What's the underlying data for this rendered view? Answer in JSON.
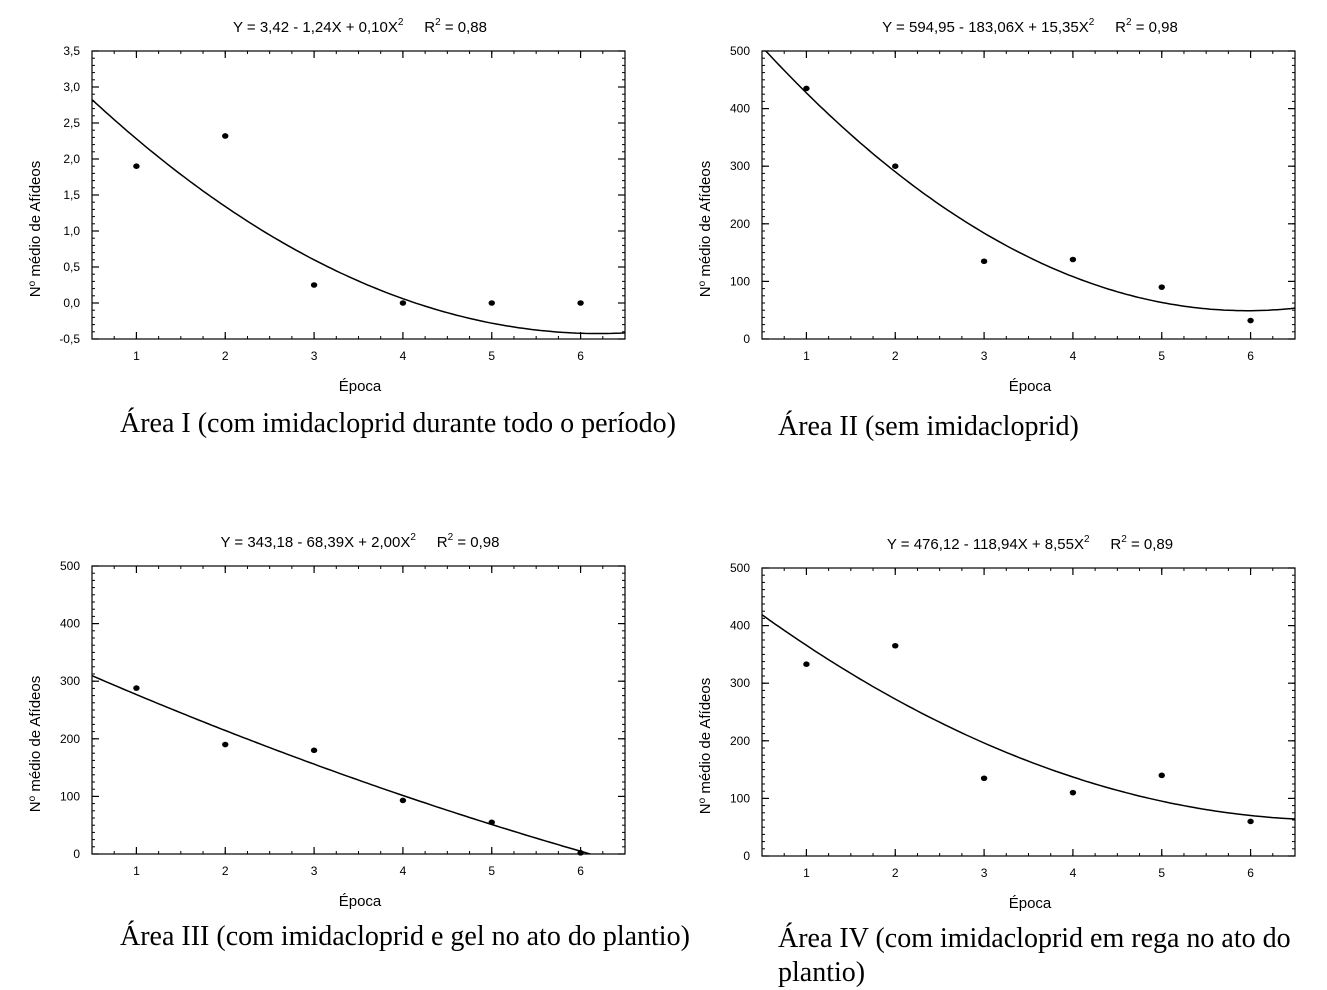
{
  "chart_data": [
    {
      "type": "scatter",
      "equation": "Y = 3,42 - 1,24X + 0,10X",
      "equation_exp": "2",
      "r2_label": "R",
      "r2_exp": "2",
      "r2_value": "= 0,88",
      "xlabel": "Época",
      "ylabel": "N",
      "ylabel_sup": "o",
      "ylabel_rest": " médio de Afídeos",
      "caption": "Área I (com imidacloprid durante todo o período)",
      "xlim": [
        0.5,
        6.5
      ],
      "ylim": [
        -0.5,
        3.5
      ],
      "xticks": [
        "1",
        "2",
        "3",
        "4",
        "5",
        "6"
      ],
      "yticks": [
        -0.5,
        0,
        0.5,
        1,
        1.5,
        2,
        2.5,
        3,
        3.5
      ],
      "ytick_labels": [
        "-0,5",
        "0,0",
        "0,5",
        "1,0",
        "1,5",
        "2,0",
        "2,5",
        "3,0",
        "3,5"
      ],
      "x": [
        1,
        2,
        3,
        4,
        5,
        6
      ],
      "y": [
        1.9,
        2.32,
        0.25,
        0.0,
        0.0,
        0.0
      ],
      "fit": [
        3.42,
        -1.24,
        0.1
      ]
    },
    {
      "type": "scatter",
      "equation": "Y = 594,95 - 183,06X + 15,35X",
      "equation_exp": "2",
      "r2_label": "R",
      "r2_exp": "2",
      "r2_value": "= 0,98",
      "xlabel": "Época",
      "ylabel": "N",
      "ylabel_sup": "o",
      "ylabel_rest": " médio de Afídeos",
      "caption": "Área II (sem imidacloprid)",
      "xlim": [
        0.5,
        6.5
      ],
      "ylim": [
        0,
        500
      ],
      "xticks": [
        "1",
        "2",
        "3",
        "4",
        "5",
        "6"
      ],
      "yticks": [
        0,
        100,
        200,
        300,
        400,
        500
      ],
      "ytick_labels": [
        "0",
        "100",
        "200",
        "300",
        "400",
        "500"
      ],
      "x": [
        1,
        2,
        3,
        4,
        5,
        6
      ],
      "y": [
        435,
        300,
        135,
        138,
        90,
        32
      ],
      "fit": [
        594.95,
        -183.06,
        15.35
      ]
    },
    {
      "type": "scatter",
      "equation": "Y = 343,18 - 68,39X + 2,00X",
      "equation_exp": "2",
      "r2_label": "R",
      "r2_exp": "2",
      "r2_value": "= 0,98",
      "xlabel": "Época",
      "ylabel": "N",
      "ylabel_sup": "o",
      "ylabel_rest": " médio de Afídeos",
      "caption": "Área III (com imidacloprid e gel no ato do plantio)",
      "xlim": [
        0.5,
        6.5
      ],
      "ylim": [
        0,
        500
      ],
      "xticks": [
        "1",
        "2",
        "3",
        "4",
        "5",
        "6"
      ],
      "yticks": [
        0,
        100,
        200,
        300,
        400,
        500
      ],
      "ytick_labels": [
        "0",
        "100",
        "200",
        "300",
        "400",
        "500"
      ],
      "x": [
        1,
        2,
        3,
        4,
        5,
        6
      ],
      "y": [
        288,
        190,
        180,
        93,
        55,
        2
      ],
      "fit": [
        343.18,
        -68.39,
        2.0
      ]
    },
    {
      "type": "scatter",
      "equation": "Y = 476,12 - 118,94X + 8,55X",
      "equation_exp": "2",
      "r2_label": "R",
      "r2_exp": "2",
      "r2_value": "= 0,89",
      "xlabel": "Época",
      "ylabel": "N",
      "ylabel_sup": "o",
      "ylabel_rest": " médio de Afídeos",
      "caption": "Área IV (com imidacloprid em rega no ato do plantio)",
      "xlim": [
        0.5,
        6.5
      ],
      "ylim": [
        0,
        500
      ],
      "xticks": [
        "1",
        "2",
        "3",
        "4",
        "5",
        "6"
      ],
      "yticks": [
        0,
        100,
        200,
        300,
        400,
        500
      ],
      "ytick_labels": [
        "0",
        "100",
        "200",
        "300",
        "400",
        "500"
      ],
      "x": [
        1,
        2,
        3,
        4,
        5,
        6
      ],
      "y": [
        333,
        365,
        135,
        110,
        140,
        60
      ],
      "fit": [
        476.12,
        -118.94,
        8.55
      ]
    }
  ]
}
